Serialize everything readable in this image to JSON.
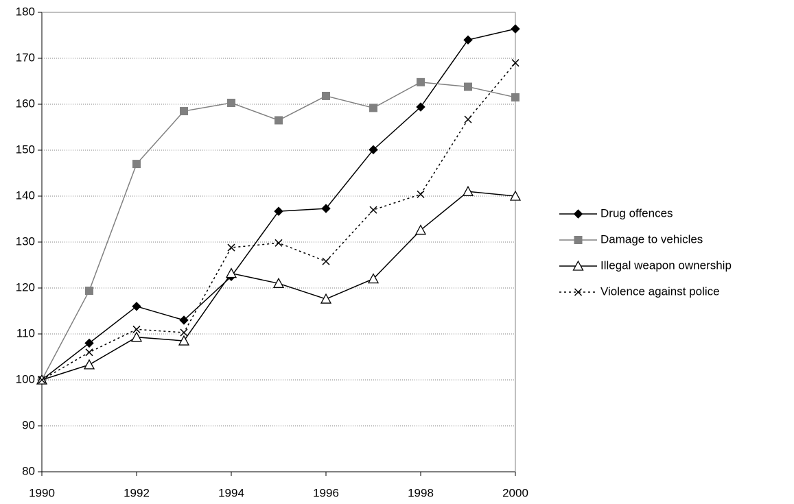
{
  "chart_data": {
    "type": "line",
    "x": [
      1990,
      1991,
      1992,
      1993,
      1994,
      1995,
      1996,
      1997,
      1998,
      1999,
      2000
    ],
    "xlim": [
      1990,
      2000
    ],
    "xticks": [
      1990,
      1992,
      1994,
      1996,
      1998,
      2000
    ],
    "ylim": [
      80,
      180
    ],
    "yticks": [
      80,
      90,
      100,
      110,
      120,
      130,
      140,
      150,
      160,
      170,
      180
    ],
    "grid": true,
    "legend": "right",
    "series": [
      {
        "name": "Drug offences",
        "color": "#000000",
        "marker": "diamond",
        "dash": "solid",
        "values": [
          100,
          108,
          116,
          113,
          122.5,
          136.7,
          137.3,
          150.1,
          159.4,
          174,
          176.4
        ]
      },
      {
        "name": "Damage to vehicles",
        "color": "#808080",
        "marker": "square",
        "dash": "solid",
        "values": [
          100,
          119.4,
          147,
          158.5,
          160.3,
          156.5,
          161.8,
          159.2,
          164.8,
          163.8,
          161.5
        ]
      },
      {
        "name": "Illegal weapon ownership",
        "color": "#000000",
        "marker": "triangle",
        "dash": "solid",
        "values": [
          100,
          103.3,
          109.3,
          108.5,
          123.2,
          121,
          117.6,
          122,
          132.6,
          141,
          140
        ]
      },
      {
        "name": "Violence against police",
        "color": "#000000",
        "marker": "cross",
        "dash": "dotted",
        "values": [
          100,
          106,
          111,
          110.3,
          128.8,
          129.8,
          125.8,
          137,
          140.4,
          156.7,
          169
        ]
      }
    ]
  }
}
